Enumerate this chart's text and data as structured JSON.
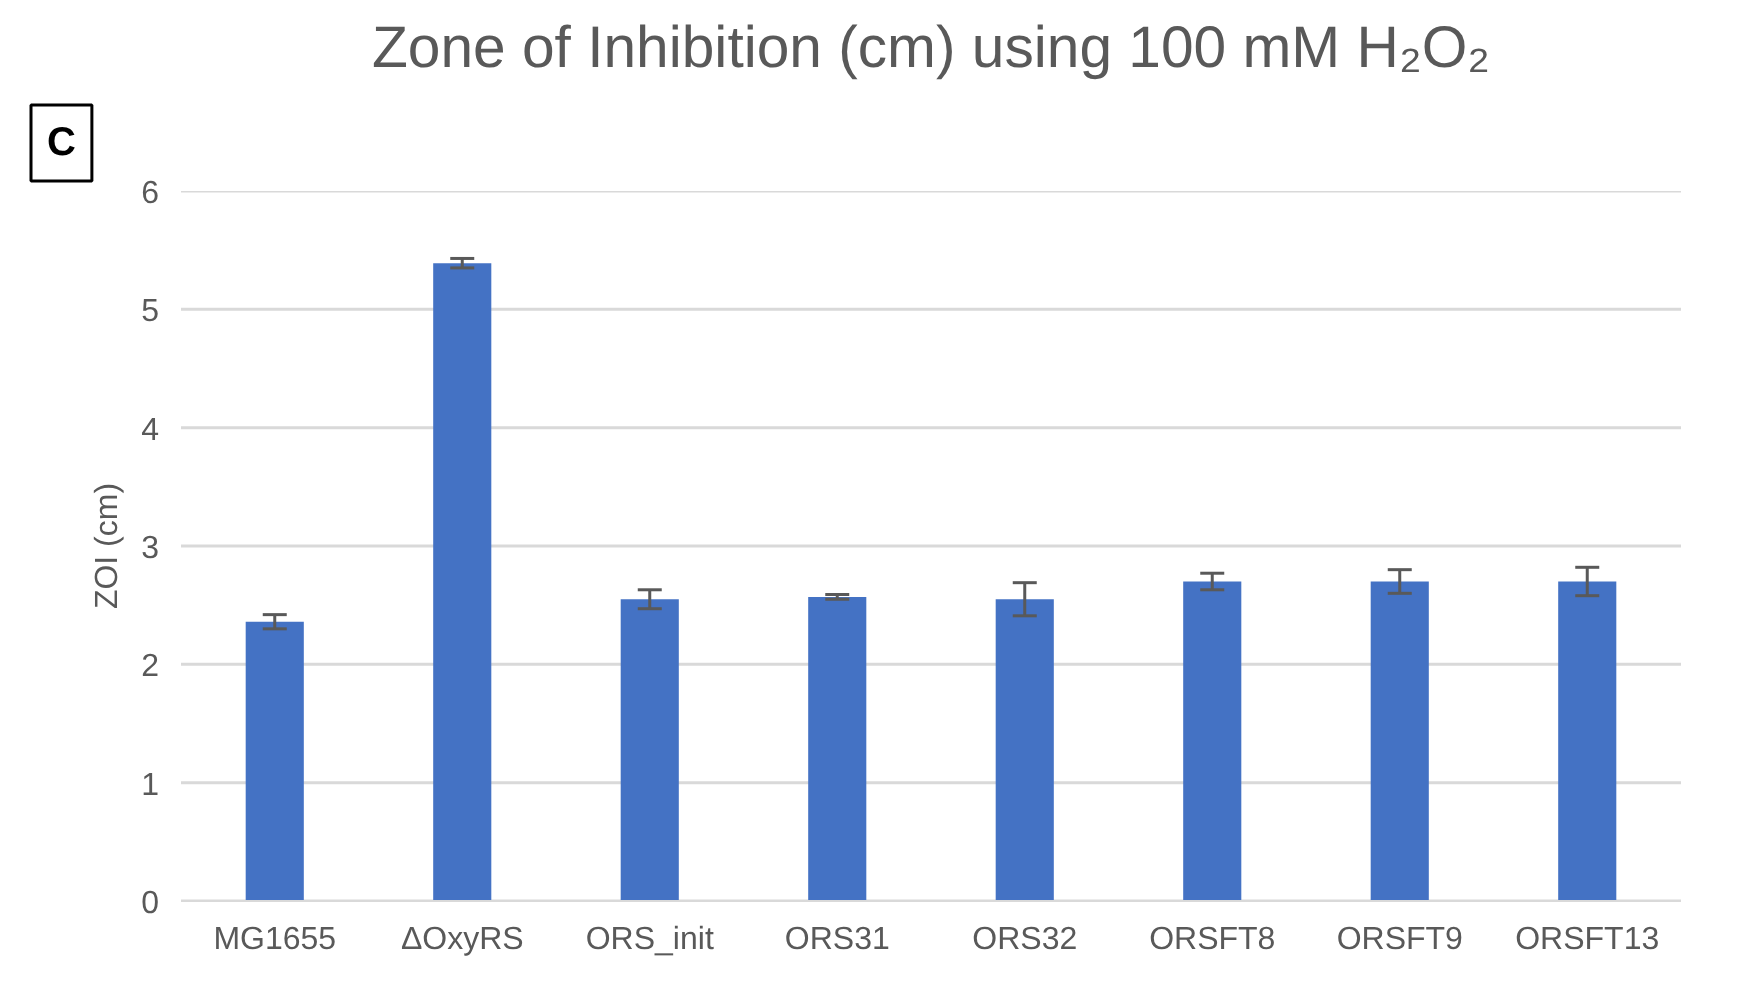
{
  "chart_data": {
    "type": "bar",
    "title": "Zone of Inhibition (cm) using 100 mM H₂O₂",
    "ylabel": "ZOI (cm)",
    "annotations": [
      "C"
    ],
    "categories": [
      "MG1655",
      "ΔOxyRS",
      "ORS_init",
      "ORS31",
      "ORS32",
      "ORSFT8",
      "ORSFT9",
      "ORSFT13"
    ],
    "values": [
      2.36,
      5.39,
      2.55,
      2.57,
      2.55,
      2.7,
      2.7,
      2.7
    ],
    "errors": [
      0.06,
      0.04,
      0.08,
      0.02,
      0.14,
      0.07,
      0.1,
      0.12
    ],
    "color": "#4472c4",
    "ylim": [
      0,
      6
    ],
    "yticks": [
      0,
      1,
      2,
      3,
      4,
      5,
      6
    ],
    "grid": "y"
  }
}
